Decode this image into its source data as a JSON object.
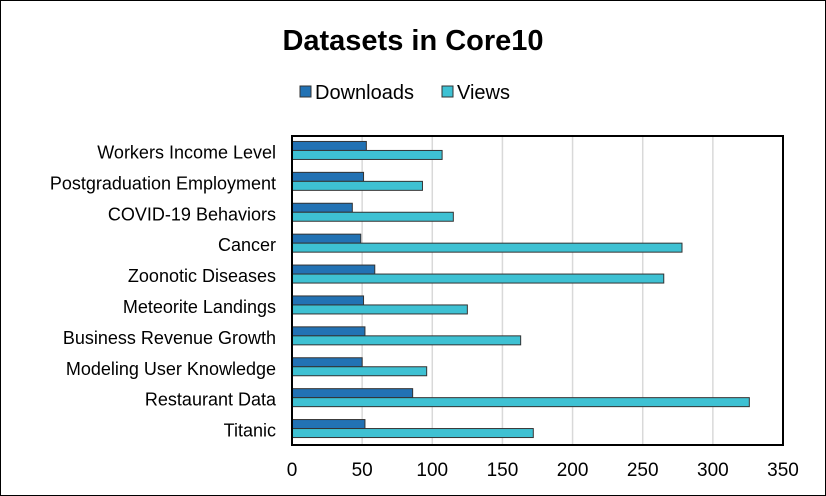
{
  "chart_data": {
    "type": "bar",
    "orientation": "horizontal",
    "title": "Datasets in Core10",
    "xlabel": "",
    "ylabel": "",
    "categories": [
      "Workers Income Level",
      "Postgraduation Employment",
      "COVID-19 Behaviors",
      "Cancer",
      "Zoonotic Diseases",
      "Meteorite Landings",
      "Business Revenue Growth",
      "Modeling User Knowledge",
      "Restaurant Data",
      "Titanic"
    ],
    "series": [
      {
        "name": "Downloads",
        "color": "#2272b4",
        "values": [
          53,
          51,
          43,
          49,
          59,
          51,
          52,
          50,
          86,
          52
        ]
      },
      {
        "name": "Views",
        "color": "#3ec1d3",
        "values": [
          107,
          93,
          115,
          278,
          265,
          125,
          163,
          96,
          326,
          172
        ]
      }
    ],
    "xlim": [
      0,
      350
    ],
    "xticks": [
      "0",
      "50",
      "100",
      "150",
      "200",
      "250",
      "300",
      "350"
    ],
    "grid": true,
    "legend_position": "top"
  }
}
